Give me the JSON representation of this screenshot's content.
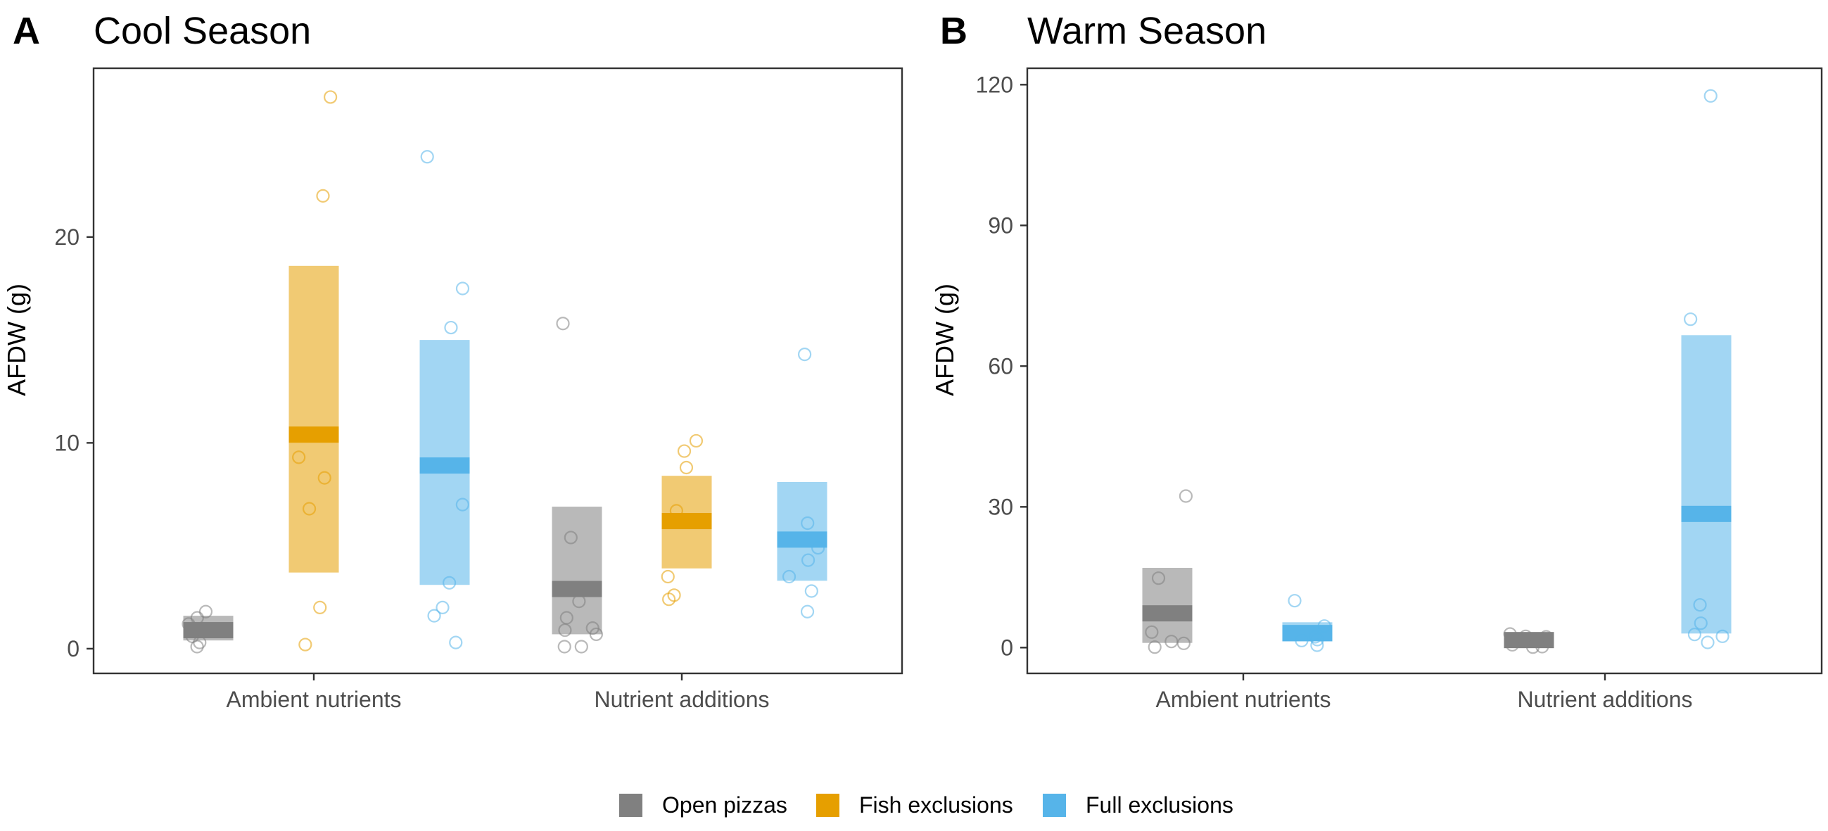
{
  "legend": {
    "entries": [
      {
        "label": "Open pizzas",
        "color": "#808080"
      },
      {
        "label": "Fish exclusions",
        "color": "#E69F00"
      },
      {
        "label": "Full exclusions",
        "color": "#56B4E9"
      }
    ]
  },
  "chart_data": [
    {
      "type": "box",
      "tag": "A",
      "title": "Cool Season",
      "xlabel": "",
      "ylabel": "AFDW (g)",
      "ylim": [
        -1.2,
        28.2
      ],
      "yticks": [
        0,
        10,
        20
      ],
      "grid": false,
      "categories": [
        "Ambient nutrients",
        "Nutrient additions"
      ],
      "series": [
        {
          "name": "Open pizzas",
          "boxes": [
            {
              "low": 0.4,
              "high": 1.6,
              "mid": 0.9
            },
            {
              "low": 0.7,
              "high": 6.9,
              "mid": 2.9
            }
          ],
          "points": [
            [
              1.2,
              1.5,
              0.6,
              0.3,
              1.8,
              0.1
            ],
            [
              0.1,
              0.7,
              1.0,
              1.5,
              5.4,
              2.3,
              0.9,
              0.1,
              15.8
            ]
          ]
        },
        {
          "name": "Fish exclusions",
          "boxes": [
            {
              "low": 3.7,
              "high": 18.6,
              "mid": 10.4
            },
            {
              "low": 3.9,
              "high": 8.4,
              "mid": 6.2
            }
          ],
          "points": [
            [
              26.8,
              22.0,
              9.3,
              8.3,
              6.8,
              2.0,
              0.2
            ],
            [
              10.1,
              9.6,
              8.8,
              6.7,
              3.5,
              2.6,
              2.4
            ]
          ]
        },
        {
          "name": "Full exclusions",
          "boxes": [
            {
              "low": 3.1,
              "high": 15.0,
              "mid": 8.9
            },
            {
              "low": 3.3,
              "high": 8.1,
              "mid": 5.3
            }
          ],
          "points": [
            [
              23.9,
              17.5,
              15.6,
              7.0,
              3.2,
              2.0,
              1.6,
              0.3
            ],
            [
              14.3,
              6.1,
              4.9,
              4.3,
              3.5,
              2.8,
              1.8
            ]
          ]
        }
      ]
    },
    {
      "type": "box",
      "tag": "B",
      "title": "Warm Season",
      "xlabel": "",
      "ylabel": "AFDW (g)",
      "ylim": [
        -5.5,
        123.5
      ],
      "yticks": [
        0,
        30,
        60,
        90,
        120
      ],
      "grid": false,
      "categories": [
        "Ambient nutrients",
        "Nutrient additions"
      ],
      "series": [
        {
          "name": "Open pizzas",
          "boxes": [
            {
              "low": 1.0,
              "high": 17.0,
              "mid": 7.3
            },
            {
              "low": 0.3,
              "high": 3.0,
              "mid": 1.6
            }
          ],
          "points": [
            [
              32.3,
              14.8,
              3.3,
              1.3,
              0.9,
              0.1
            ],
            [
              2.9,
              2.3,
              1.5,
              0.6,
              0.2,
              2.4,
              0.1
            ]
          ]
        },
        {
          "name": "Fish exclusions",
          "boxes": [],
          "points": [
            [],
            []
          ]
        },
        {
          "name": "Full exclusions",
          "boxes": [
            {
              "low": 1.3,
              "high": 5.4,
              "mid": 3.1
            },
            {
              "low": 3.0,
              "high": 66.6,
              "mid": 28.5
            }
          ],
          "points": [
            [
              10.0,
              4.6,
              2.3,
              1.5,
              1.7,
              0.5
            ],
            [
              117.6,
              70.0,
              9.1,
              5.2,
              2.8,
              2.4,
              1.1
            ]
          ]
        }
      ]
    }
  ]
}
